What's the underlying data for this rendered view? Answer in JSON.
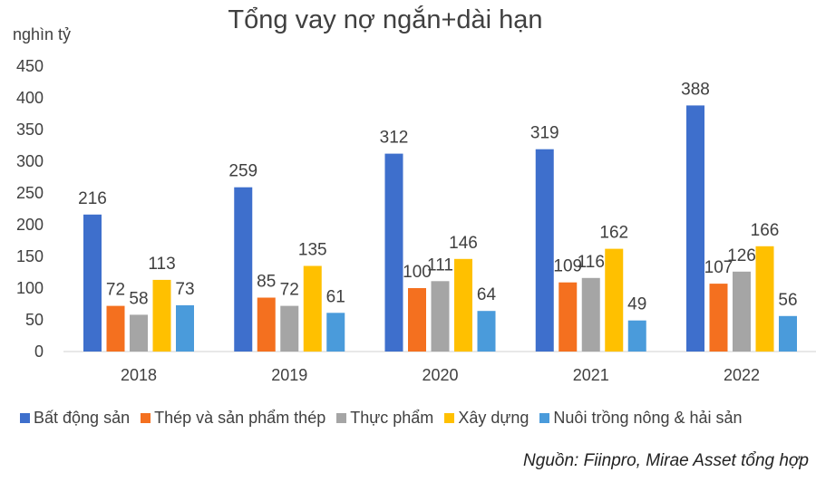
{
  "chart_data": {
    "type": "bar",
    "title": "Tổng vay nợ ngắn+dài hạn",
    "ylabel": "nghìn tỷ",
    "xlabel": "",
    "ylim": [
      0,
      450
    ],
    "yticks": [
      0,
      50,
      100,
      150,
      200,
      250,
      300,
      350,
      400,
      450
    ],
    "categories": [
      "2018",
      "2019",
      "2020",
      "2021",
      "2022"
    ],
    "series": [
      {
        "name": "Bất động sản",
        "color": "#3E6FCC",
        "values": [
          216,
          259,
          312,
          319,
          388
        ]
      },
      {
        "name": "Thép và sản phẩm thép",
        "color": "#F4701F",
        "values": [
          72,
          85,
          100,
          109,
          107
        ]
      },
      {
        "name": "Thực phẩm",
        "color": "#A5A5A5",
        "values": [
          58,
          72,
          111,
          116,
          126
        ]
      },
      {
        "name": "Xây dựng",
        "color": "#FFC000",
        "values": [
          113,
          135,
          146,
          162,
          166
        ]
      },
      {
        "name": "Nuôi trồng nông & hải sản",
        "color": "#4A9BDB",
        "values": [
          73,
          61,
          64,
          49,
          56
        ]
      }
    ],
    "grid": false,
    "legend_position": "bottom",
    "source": "Nguồn: Fiinpro, Mirae Asset tổng hợp"
  }
}
